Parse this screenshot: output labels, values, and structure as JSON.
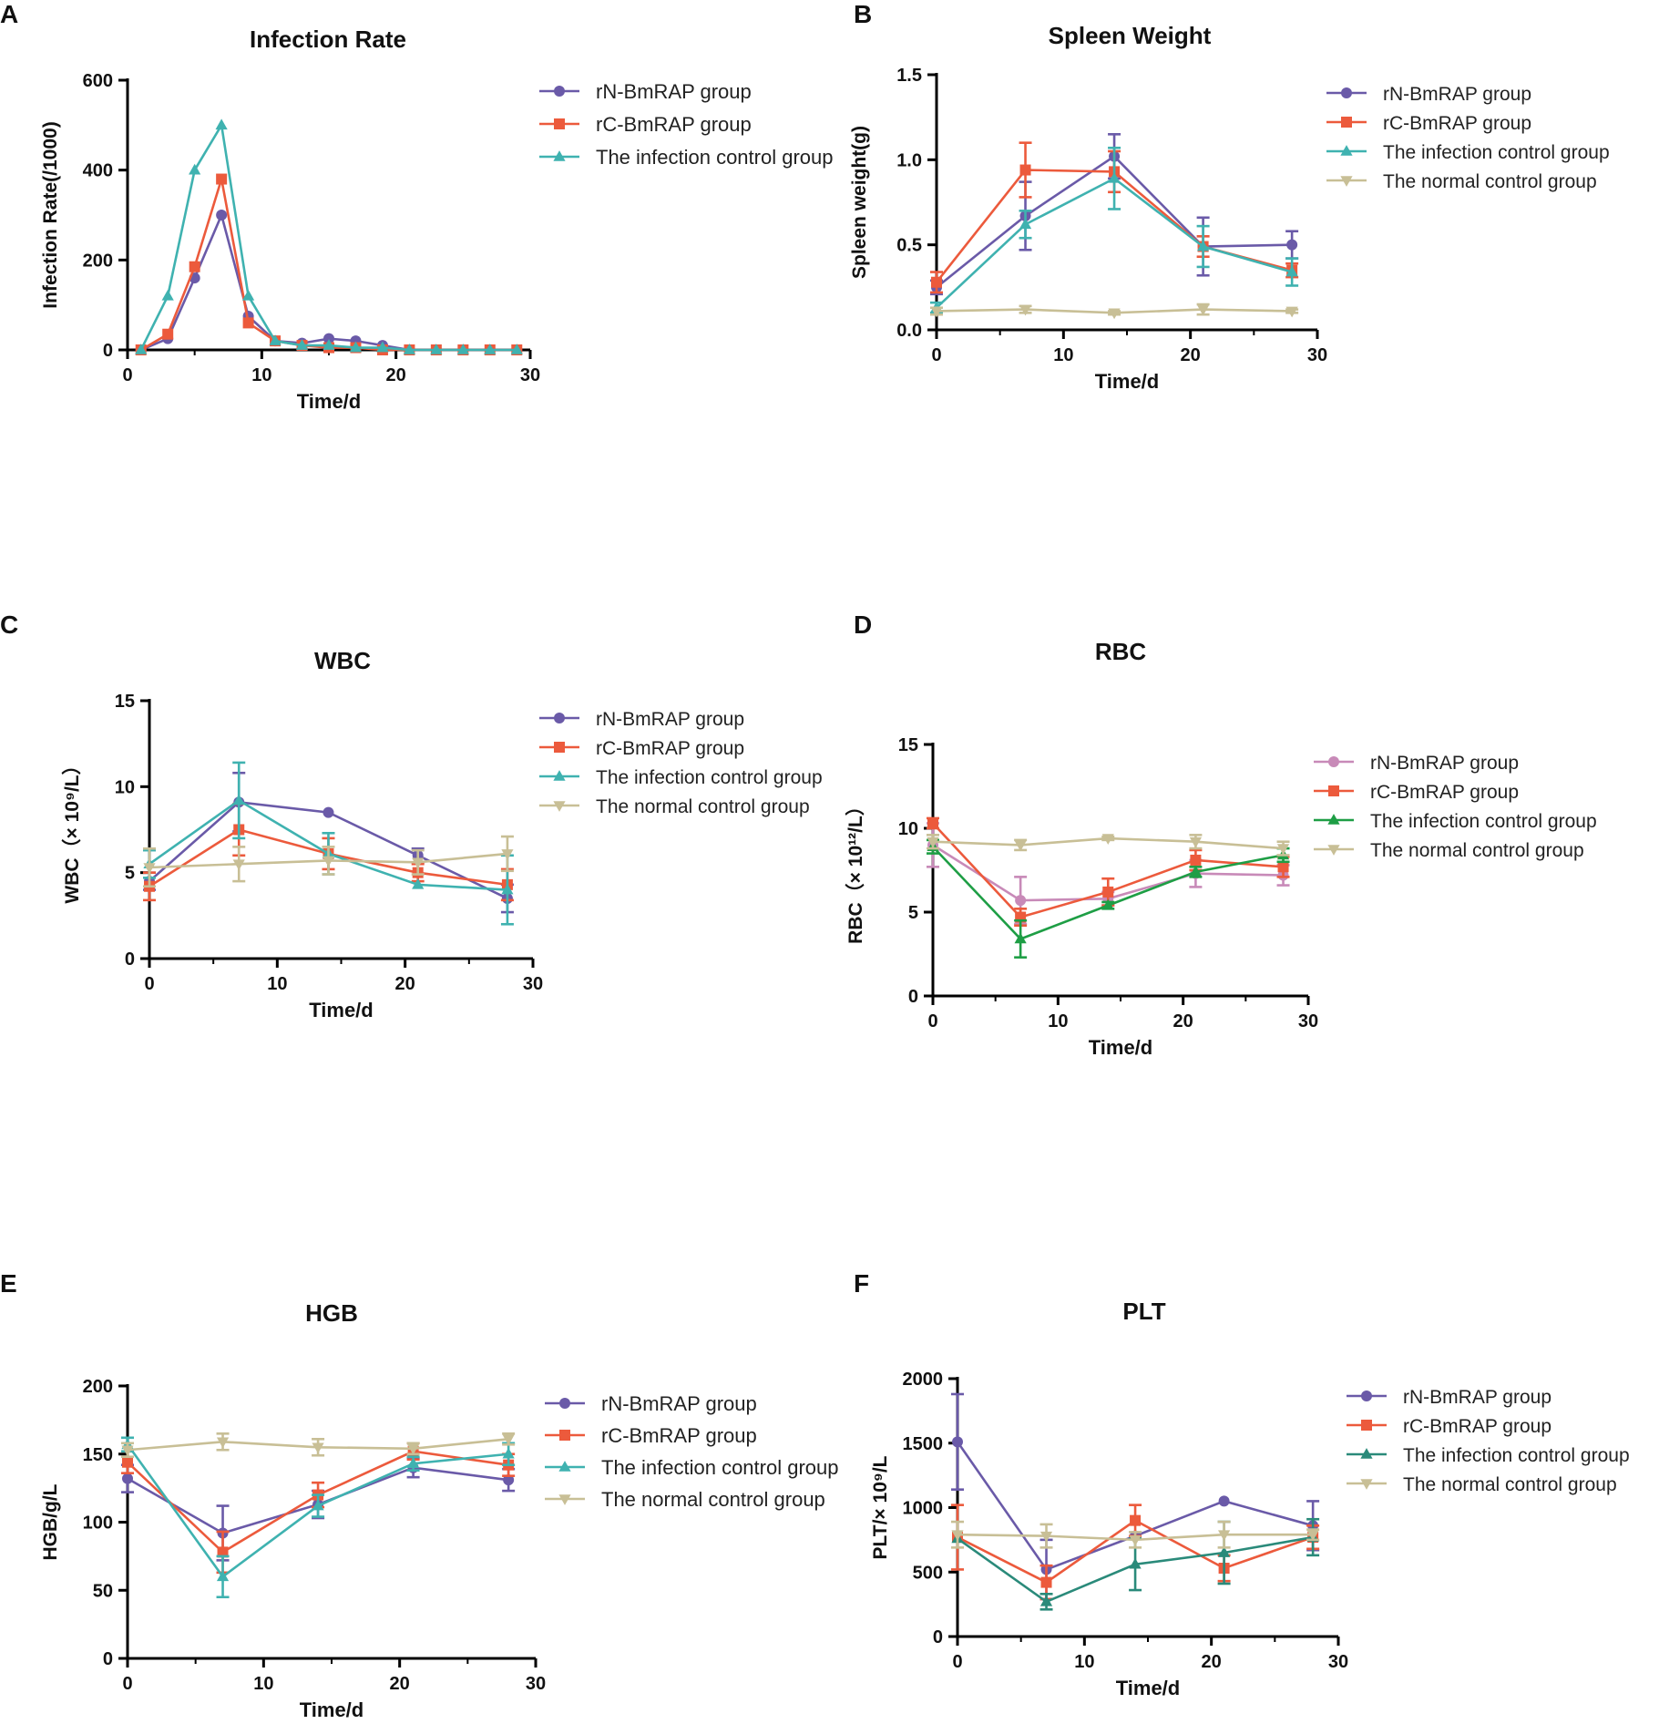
{
  "figure": {
    "panels": [
      "A",
      "B",
      "C",
      "D",
      "E",
      "F"
    ]
  },
  "colors": {
    "purple": "#6a5aa8",
    "red": "#ec5a3c",
    "teal": "#3fb2b0",
    "green": "#1e9e45",
    "darkteal": "#2a8a7a",
    "tan": "#c8bf96",
    "pink": "#c88ab8"
  },
  "chart_data": [
    {
      "panel": "A",
      "type": "line",
      "title": "Infection Rate",
      "xlabel": "Time/d",
      "ylabel": "Infection Rate(/1000)",
      "xlim": [
        0,
        30
      ],
      "ylim": [
        0,
        600
      ],
      "xticks": [
        "0",
        "10",
        "20",
        "30"
      ],
      "yticks": [
        "0",
        "200",
        "400",
        "600"
      ],
      "series": [
        {
          "name": "rN-BmRAP group",
          "color": "#6a5aa8",
          "marker": "circle",
          "x": [
            1,
            3,
            5,
            7,
            9,
            11,
            13,
            15,
            17,
            19,
            21,
            23,
            25,
            27,
            29
          ],
          "y": [
            0,
            25,
            160,
            300,
            75,
            20,
            15,
            25,
            20,
            10,
            0,
            0,
            0,
            0,
            0
          ]
        },
        {
          "name": "rC-BmRAP group",
          "color": "#ec5a3c",
          "marker": "square",
          "x": [
            1,
            3,
            5,
            7,
            9,
            11,
            13,
            15,
            17,
            19,
            21,
            23,
            25,
            27,
            29
          ],
          "y": [
            0,
            35,
            185,
            380,
            60,
            20,
            10,
            5,
            5,
            0,
            0,
            0,
            0,
            0,
            0
          ]
        },
        {
          "name": "The infection control group",
          "color": "#3fb2b0",
          "marker": "triangle",
          "x": [
            1,
            3,
            5,
            7,
            9,
            11,
            13,
            15,
            17,
            19,
            21,
            23,
            25,
            27,
            29
          ],
          "y": [
            0,
            120,
            400,
            500,
            120,
            20,
            10,
            10,
            5,
            5,
            0,
            0,
            0,
            0,
            0
          ]
        }
      ]
    },
    {
      "panel": "B",
      "type": "line",
      "title": "Spleen Weight",
      "xlabel": "Time/d",
      "ylabel": "Spleen weight(g)",
      "xlim": [
        0,
        30
      ],
      "ylim": [
        0,
        1.5
      ],
      "xticks": [
        "0",
        "10",
        "20",
        "30"
      ],
      "yticks": [
        "0.0",
        "0.5",
        "1.0",
        "1.5"
      ],
      "series": [
        {
          "name": "rN-BmRAP group",
          "color": "#6a5aa8",
          "marker": "circle",
          "x": [
            0,
            7,
            14,
            21,
            28
          ],
          "y": [
            0.25,
            0.67,
            1.02,
            0.49,
            0.5
          ],
          "err": [
            0.04,
            0.2,
            0.13,
            0.17,
            0.08
          ]
        },
        {
          "name": "rC-BmRAP group",
          "color": "#ec5a3c",
          "marker": "square",
          "x": [
            0,
            7,
            14,
            21,
            28
          ],
          "y": [
            0.28,
            0.94,
            0.93,
            0.49,
            0.35
          ],
          "err": [
            0.06,
            0.16,
            0.12,
            0.06,
            0.04
          ]
        },
        {
          "name": "The infection control group",
          "color": "#3fb2b0",
          "marker": "triangle",
          "x": [
            0,
            7,
            14,
            21,
            28
          ],
          "y": [
            0.13,
            0.62,
            0.89,
            0.49,
            0.34
          ],
          "err": [
            0.03,
            0.08,
            0.18,
            0.12,
            0.08
          ]
        },
        {
          "name": "The normal control group",
          "color": "#c8bf96",
          "marker": "triangle-down",
          "x": [
            0,
            7,
            14,
            21,
            28
          ],
          "y": [
            0.11,
            0.12,
            0.1,
            0.12,
            0.11
          ],
          "err": [
            0.02,
            0.02,
            0.01,
            0.03,
            0.01
          ]
        }
      ]
    },
    {
      "panel": "C",
      "type": "line",
      "title": "WBC",
      "xlabel": "Time/d",
      "ylabel": "WBC（× 10⁹/L）",
      "xlim": [
        0,
        30
      ],
      "ylim": [
        0,
        15
      ],
      "xticks": [
        "0",
        "10",
        "20",
        "30"
      ],
      "yticks": [
        "0",
        "5",
        "10",
        "15"
      ],
      "series": [
        {
          "name": "rN-BmRAP group",
          "color": "#6a5aa8",
          "marker": "circle",
          "x": [
            0,
            7,
            14,
            21,
            28
          ],
          "y": [
            4.5,
            9.1,
            8.5,
            6.0,
            3.5
          ],
          "err": [
            0.5,
            1.7,
            0,
            0.4,
            0.8
          ]
        },
        {
          "name": "rC-BmRAP group",
          "color": "#ec5a3c",
          "marker": "square",
          "x": [
            0,
            7,
            14,
            21,
            28
          ],
          "y": [
            4.2,
            7.5,
            6.1,
            5.0,
            4.3
          ],
          "err": [
            0.8,
            1.5,
            0.9,
            0.5,
            0.9
          ]
        },
        {
          "name": "The infection control group",
          "color": "#3fb2b0",
          "marker": "triangle",
          "x": [
            0,
            7,
            14,
            21,
            28
          ],
          "y": [
            5.5,
            9.2,
            6.1,
            4.3,
            4.0
          ],
          "err": [
            0.8,
            2.2,
            1.2,
            0,
            2.0
          ]
        },
        {
          "name": "The normal control group",
          "color": "#c8bf96",
          "marker": "triangle-down",
          "x": [
            0,
            7,
            14,
            21,
            28
          ],
          "y": [
            5.3,
            5.5,
            5.7,
            5.6,
            6.1
          ],
          "err": [
            1.1,
            1.0,
            0.8,
            0.7,
            1.0
          ]
        }
      ]
    },
    {
      "panel": "D",
      "type": "line",
      "title": "RBC",
      "xlabel": "Time/d",
      "ylabel": "RBC（× 10¹²/L）",
      "xlim": [
        0,
        30
      ],
      "ylim": [
        0,
        15
      ],
      "xticks": [
        "0",
        "10",
        "20",
        "30"
      ],
      "yticks": [
        "0",
        "5",
        "10",
        "15"
      ],
      "series": [
        {
          "name": "rN-BmRAP group",
          "color": "#c88ab8",
          "marker": "circle",
          "x": [
            0,
            7,
            14,
            21,
            28
          ],
          "y": [
            9.0,
            5.7,
            5.8,
            7.3,
            7.2
          ],
          "err": [
            1.3,
            1.4,
            0.4,
            0.8,
            0.6
          ]
        },
        {
          "name": "rC-BmRAP group",
          "color": "#ec5a3c",
          "marker": "square",
          "x": [
            0,
            7,
            14,
            21,
            28
          ],
          "y": [
            10.3,
            4.7,
            6.2,
            8.1,
            7.7
          ],
          "err": [
            0.3,
            0.5,
            0.8,
            0.6,
            0.6
          ]
        },
        {
          "name": "The infection control group",
          "color": "#1e9e45",
          "marker": "triangle",
          "x": [
            0,
            7,
            14,
            21,
            28
          ],
          "y": [
            8.9,
            3.4,
            5.4,
            7.4,
            8.4
          ],
          "err": [
            0.4,
            1.1,
            0.2,
            0.3,
            0.4
          ]
        },
        {
          "name": "The normal control group",
          "color": "#c8bf96",
          "marker": "triangle-down",
          "x": [
            0,
            7,
            14,
            21,
            28
          ],
          "y": [
            9.2,
            9.0,
            9.4,
            9.2,
            8.8
          ],
          "err": [
            0.4,
            0.3,
            0.1,
            0.4,
            0.4
          ]
        }
      ]
    },
    {
      "panel": "E",
      "type": "line",
      "title": "HGB",
      "xlabel": "Time/d",
      "ylabel": "HGB/g/L",
      "xlim": [
        0,
        30
      ],
      "ylim": [
        0,
        200
      ],
      "xticks": [
        "0",
        "10",
        "20",
        "30"
      ],
      "yticks": [
        "0",
        "50",
        "100",
        "150",
        "200"
      ],
      "series": [
        {
          "name": "rN-BmRAP group",
          "color": "#6a5aa8",
          "marker": "circle",
          "x": [
            0,
            7,
            14,
            21,
            28
          ],
          "y": [
            132,
            92,
            113,
            140,
            131
          ],
          "err": [
            10,
            20,
            10,
            7,
            8
          ]
        },
        {
          "name": "rC-BmRAP group",
          "color": "#ec5a3c",
          "marker": "square",
          "x": [
            0,
            7,
            14,
            21,
            28
          ],
          "y": [
            144,
            78,
            120,
            152,
            142
          ],
          "err": [
            8,
            15,
            9,
            6,
            8
          ]
        },
        {
          "name": "The infection control group",
          "color": "#3fb2b0",
          "marker": "triangle",
          "x": [
            0,
            7,
            14,
            21,
            28
          ],
          "y": [
            157,
            60,
            112,
            143,
            150
          ],
          "err": [
            5,
            15,
            8,
            5,
            8
          ]
        },
        {
          "name": "The normal control group",
          "color": "#c8bf96",
          "marker": "triangle-down",
          "x": [
            0,
            7,
            14,
            21,
            28
          ],
          "y": [
            153,
            159,
            155,
            154,
            161
          ],
          "err": [
            5,
            6,
            6,
            4,
            4
          ]
        }
      ]
    },
    {
      "panel": "F",
      "type": "line",
      "title": "PLT",
      "xlabel": "Time/d",
      "ylabel": "PLT/× 10⁹/L",
      "xlim": [
        0,
        30
      ],
      "ylim": [
        0,
        2000
      ],
      "xticks": [
        "0",
        "10",
        "20",
        "30"
      ],
      "yticks": [
        "0",
        "500",
        "1000",
        "1500",
        "2000"
      ],
      "series": [
        {
          "name": "rN-BmRAP group",
          "color": "#6a5aa8",
          "marker": "circle",
          "x": [
            0,
            7,
            14,
            21,
            28
          ],
          "y": [
            1510,
            520,
            780,
            1050,
            860
          ],
          "err": [
            370,
            230,
            0,
            0,
            190
          ]
        },
        {
          "name": "rC-BmRAP group",
          "color": "#ec5a3c",
          "marker": "square",
          "x": [
            0,
            7,
            14,
            21,
            28
          ],
          "y": [
            770,
            420,
            900,
            530,
            770
          ],
          "err": [
            250,
            130,
            120,
            100,
            90
          ]
        },
        {
          "name": "The infection control group",
          "color": "#2a8a7a",
          "marker": "triangle",
          "x": [
            0,
            7,
            14,
            21,
            28
          ],
          "y": [
            760,
            270,
            560,
            650,
            770
          ],
          "err": [
            0,
            60,
            200,
            240,
            140
          ]
        },
        {
          "name": "The normal control group",
          "color": "#c8bf96",
          "marker": "triangle-down",
          "x": [
            0,
            7,
            14,
            21,
            28
          ],
          "y": [
            790,
            780,
            750,
            790,
            790
          ],
          "err": [
            100,
            90,
            60,
            100,
            40
          ]
        }
      ]
    }
  ]
}
